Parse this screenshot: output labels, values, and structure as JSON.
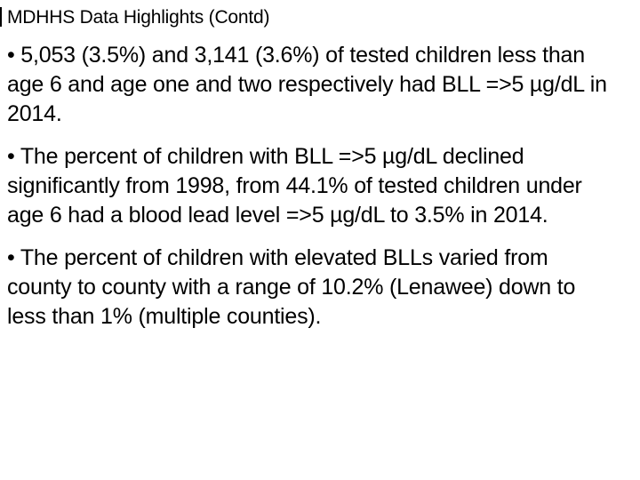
{
  "slide": {
    "title": "MDHHS Data Highlights (Contd)",
    "background_color": "#ffffff",
    "text_color": "#000000",
    "bullets": [
      {
        "lines": [
          "• 5,053 (3.5%) and 3,141 (3.6%) of tested children less than",
          "age 6 and age one and two respectively had BLL =>5 µg/dL in",
          "2014."
        ]
      },
      {
        "lines": [
          "• The percent of children with BLL =>5 µg/dL declined",
          "significantly from 1998, from 44.1% of tested children under",
          "age 6 had a blood lead level =>5 µg/dL to 3.5% in 2014."
        ]
      },
      {
        "lines": [
          "• The percent of children with elevated BLLs varied from",
          "county to county with a range of 10.2% (Lenawee) down to",
          "less than 1% (multiple counties)."
        ]
      }
    ]
  }
}
